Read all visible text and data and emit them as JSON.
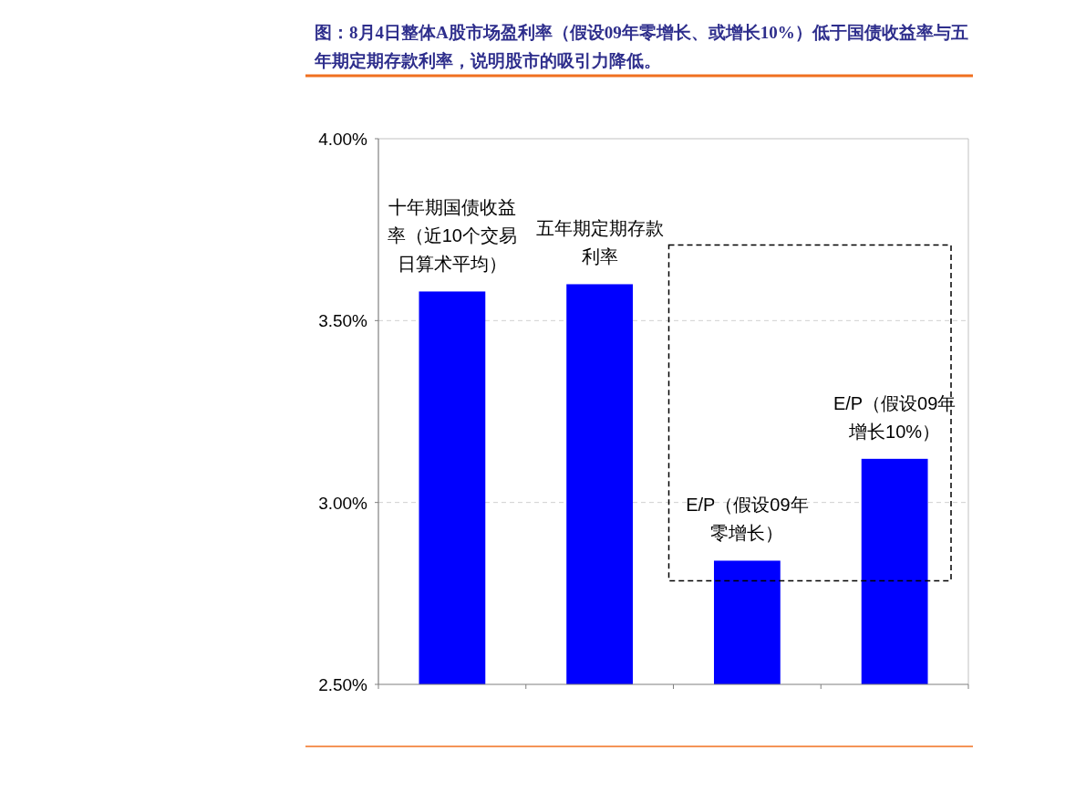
{
  "chart_data": {
    "type": "bar",
    "title": "图：8月4日整体A股市场盈利率（假设09年零增长、或增长10%）低于国债收益率与五年期定期存款利率，说明股市的吸引力降低。",
    "categories": [
      "十年期国债收益率（近10个交易日算术平均）",
      "五年期定期存款利率",
      "E/P（假设09年零增长）",
      "E/P（假设09年增长10%）"
    ],
    "values": [
      3.58,
      3.6,
      2.84,
      3.12
    ],
    "color": "#0000ff",
    "ylim": [
      2.5,
      4.0
    ],
    "yticks": [
      {
        "value": 2.5,
        "label": "2.50%"
      },
      {
        "value": 3.0,
        "label": "3.00%"
      },
      {
        "value": 3.5,
        "label": "3.50%"
      },
      {
        "value": 4.0,
        "label": "4.00%"
      }
    ],
    "grid": "y",
    "tick_labels": "y"
  }
}
